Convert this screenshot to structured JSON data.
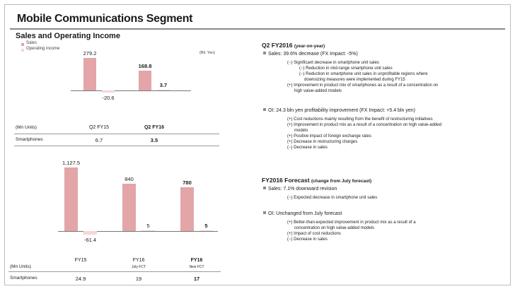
{
  "title": "Mobile Communications Segment",
  "left": {
    "section_title": "Sales and Operating Income",
    "legend": [
      {
        "label": "Sales",
        "color": "#e3a5a8"
      },
      {
        "label": "Operating income",
        "color": "#f6d6d8"
      }
    ],
    "unit_top": "(Bil. Yen)",
    "unit_label": "(Mn Units)",
    "row_label": "Smartphones",
    "top": {
      "categories": [
        "Q2 FY15",
        "Q2 FY16"
      ],
      "highlight": [
        false,
        true
      ],
      "sales_labels": [
        "279.2",
        "168.8"
      ],
      "oi_labels": [
        "-20.6",
        "3.7"
      ],
      "units": [
        "6.7",
        "3.5"
      ]
    },
    "bottom": {
      "categories": [
        "FY15",
        "FY16",
        "FY16"
      ],
      "subs": [
        "",
        "July FCT",
        "New FCT"
      ],
      "highlight": [
        false,
        false,
        true
      ],
      "sales_labels": [
        "1,127.5",
        "840",
        "780"
      ],
      "oi_labels": [
        "-61.4",
        "5",
        "5"
      ],
      "units": [
        "24.9",
        "19",
        "17"
      ]
    }
  },
  "chart_data": [
    {
      "type": "bar",
      "title": "Sales and Operating Income",
      "categories": [
        "Q2 FY15",
        "Q2 FY16"
      ],
      "series": [
        {
          "name": "Sales",
          "values": [
            279.2,
            168.8
          ]
        },
        {
          "name": "Operating income",
          "values": [
            -20.6,
            3.7
          ]
        }
      ],
      "ylabel": "(Bil. Yen)",
      "table": {
        "label": "Smartphones",
        "unit": "(Mn Units)",
        "values": [
          6.7,
          3.5
        ]
      },
      "grid": false,
      "legend": "top-left"
    },
    {
      "type": "bar",
      "categories": [
        "FY15",
        "FY16 July FCT",
        "FY16 New FCT"
      ],
      "series": [
        {
          "name": "Sales",
          "values": [
            1127.5,
            840,
            780
          ]
        },
        {
          "name": "Operating income",
          "values": [
            -61.4,
            5,
            5
          ]
        }
      ],
      "table": {
        "label": "Smartphones",
        "unit": "(Mn Units)",
        "values": [
          24.9,
          19,
          17
        ]
      },
      "grid": false
    }
  ],
  "right": {
    "q2": {
      "head": "Q2 FY2016",
      "head_sub": "(year-on-year)",
      "sales": "Sales: 39.6% decrease (FX Impact: -5%)",
      "sales_items": [
        {
          "text": "(−) Significant decrease in smartphone unit sales",
          "level": 1
        },
        {
          "text": "(−) Reduction in mid-range smartphone unit sales",
          "level": 2
        },
        {
          "text": "(−) Reduction in smartphone unit sales in unprofitable regions where",
          "level": 2
        },
        {
          "text": "downsizing measures were implemented during FY15",
          "level": 3
        },
        {
          "text": "(+) Improvement in product mix of smartphones as a result of a concentration on",
          "level": 1
        },
        {
          "text": "high value-added models",
          "level": 4
        }
      ],
      "oi": "OI: 24.3 bln yen profitability improvement (FX Impact: +5.4 bln yen)",
      "oi_items": [
        {
          "text": "(+) Cost reductions mainly resulting from the benefit of restructuring initiatives",
          "level": 1
        },
        {
          "text": "(+) Improvement in product mix as a result of a concentration on high value-added",
          "level": 1
        },
        {
          "text": "models",
          "level": 4
        },
        {
          "text": "(+) Positive impact of foreign exchange rates",
          "level": 1
        },
        {
          "text": "(+) Decrease in restructuring charges",
          "level": 1
        },
        {
          "text": "(−) Decrease in sales",
          "level": 1
        }
      ]
    },
    "fy": {
      "head": "FY2016 Forecast",
      "head_sub": "(change from July forecast)",
      "sales": "Sales: 7.1% downward revision",
      "sales_items": [
        {
          "text": "(−) Expected decrease in smartphone unit sales",
          "level": 1
        }
      ],
      "oi": "OI: Unchanged from July forecast",
      "oi_items": [
        {
          "text": "(+) Better-than-expected improvement in product mix as a result of a",
          "level": 1
        },
        {
          "text": "concentration on high value-added models",
          "level": 4
        },
        {
          "text": "(+) Impact of cost reductions",
          "level": 1
        },
        {
          "text": "(−) Decrease in sales",
          "level": 1
        }
      ]
    }
  }
}
